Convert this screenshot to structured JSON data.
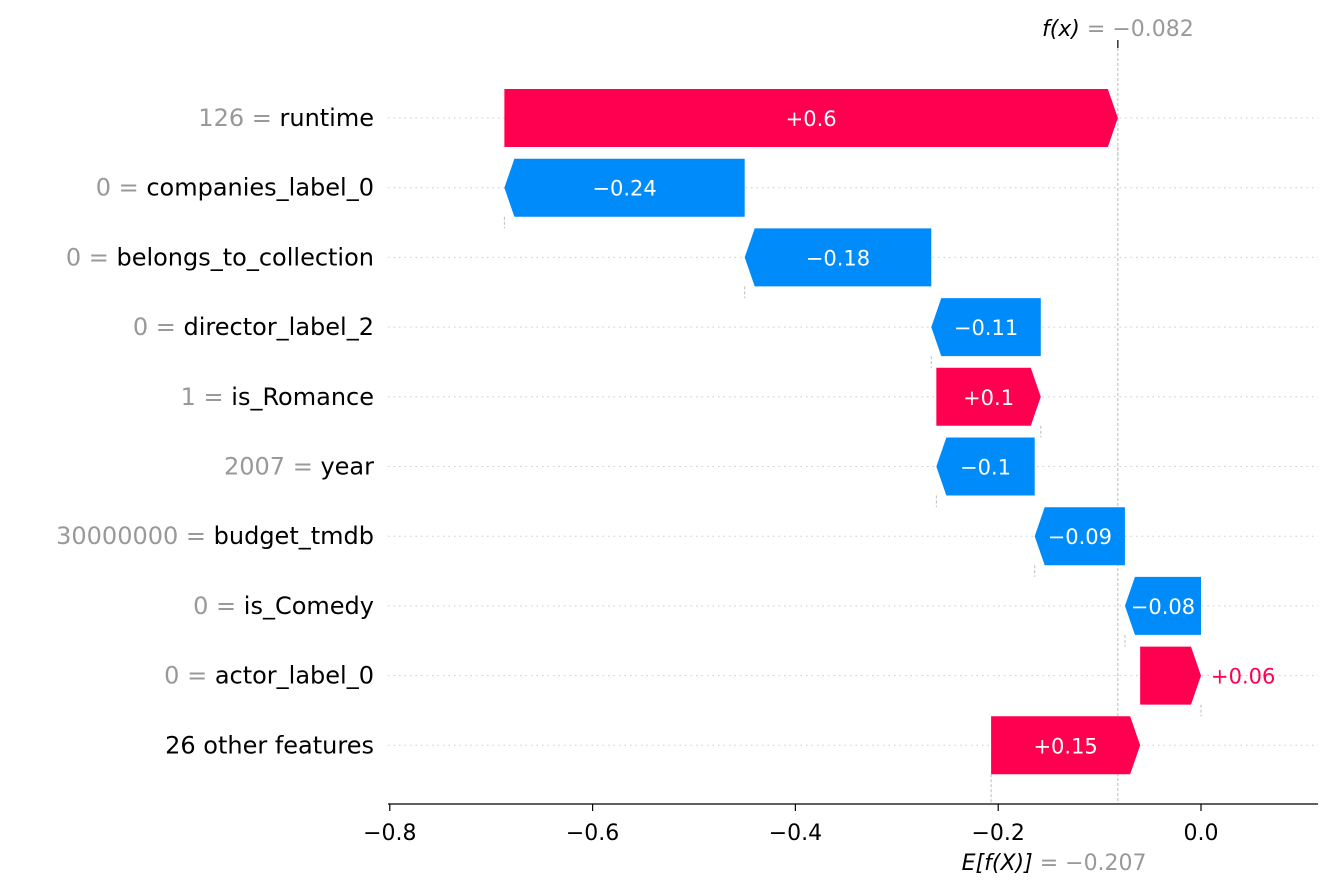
{
  "chart_data": {
    "type": "waterfall",
    "xlim": [
      -0.8,
      0.12
    ],
    "x_ticks": [
      -0.8,
      -0.6,
      -0.4,
      -0.2,
      0.0
    ],
    "x_tick_labels": [
      "−0.8",
      "−0.6",
      "−0.4",
      "−0.2",
      "0.0"
    ],
    "base_value": -0.207,
    "output_value": -0.082,
    "base_label": {
      "name": "E[f(X)]",
      "value_text": "= −0.207"
    },
    "output_label": {
      "name": "f(x)",
      "value_text": "= −0.082"
    },
    "colors": {
      "positive": "#ff0051",
      "negative": "#008bfb",
      "value_gray": "#999999"
    },
    "rows": [
      {
        "feature_value": "126",
        "feature": "runtime",
        "value": 0.6,
        "label": "+0.6",
        "start": -0.687,
        "end": -0.082
      },
      {
        "feature_value": "0",
        "feature": "companies_label_0",
        "value": -0.24,
        "label": "−0.24",
        "start": -0.45,
        "end": -0.687
      },
      {
        "feature_value": "0",
        "feature": "belongs_to_collection",
        "value": -0.18,
        "label": "−0.18",
        "start": -0.266,
        "end": -0.45
      },
      {
        "feature_value": "0",
        "feature": "director_label_2",
        "value": -0.11,
        "label": "−0.11",
        "start": -0.158,
        "end": -0.266
      },
      {
        "feature_value": "1",
        "feature": "is_Romance",
        "value": 0.1,
        "label": "+0.1",
        "start": -0.261,
        "end": -0.158
      },
      {
        "feature_value": "2007",
        "feature": "year",
        "value": -0.1,
        "label": "−0.1",
        "start": -0.164,
        "end": -0.261
      },
      {
        "feature_value": "30000000",
        "feature": "budget_tmdb",
        "value": -0.09,
        "label": "−0.09",
        "start": -0.075,
        "end": -0.164
      },
      {
        "feature_value": "0",
        "feature": "is_Comedy",
        "value": -0.08,
        "label": "−0.08",
        "start": 0.0,
        "end": -0.075
      },
      {
        "feature_value": "0",
        "feature": "actor_label_0",
        "value": 0.06,
        "label": "+0.06",
        "start": -0.06,
        "end": 0.0
      },
      {
        "feature_value": "",
        "feature": "26 other features",
        "value": 0.15,
        "label": "+0.15",
        "start": -0.207,
        "end": -0.06
      }
    ]
  }
}
